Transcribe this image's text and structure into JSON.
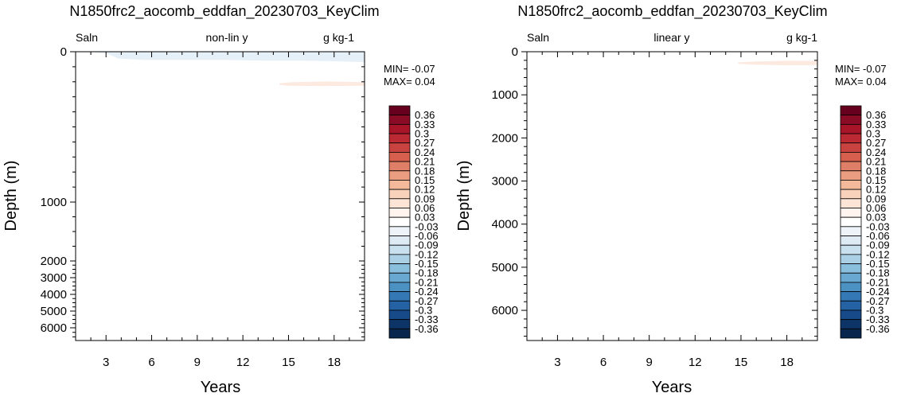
{
  "panels": [
    {
      "title": "N1850frc2_aocomb_eddfan_20230703_KeyClim",
      "left_label": "Saln",
      "center_label": "non-lin y",
      "right_label": "g kg-1",
      "xlabel": "Years",
      "ylabel": "Depth (m)",
      "min_text": "MIN= -0.07",
      "max_text": "MAX=  0.04"
    },
    {
      "title": "N1850frc2_aocomb_eddfan_20230703_KeyClim",
      "left_label": "Saln",
      "center_label": "linear y",
      "right_label": "g kg-1",
      "xlabel": "Years",
      "ylabel": "Depth (m)",
      "min_text": "MIN= -0.07",
      "max_text": "MAX=  0.04"
    }
  ],
  "chart_data": [
    {
      "type": "heatmap",
      "title": "N1850frc2_aocomb_eddfan_20230703_KeyClim",
      "variable": "Saln",
      "units": "g kg-1",
      "y_scale": "non-lin y",
      "xlabel": "Years",
      "ylabel": "Depth (m)",
      "xlim": [
        1,
        20
      ],
      "ylim": [
        0,
        6700
      ],
      "x_ticks": [
        3,
        6,
        9,
        12,
        15,
        18
      ],
      "y_ticks": [
        0,
        1000,
        2000,
        3000,
        4000,
        5000,
        6000
      ],
      "min": -0.07,
      "max": 0.04,
      "features": [
        {
          "value_bin": "-0.03 to 0",
          "color": "#e6f0f8",
          "years": [
            2,
            20
          ],
          "depth_m": [
            0,
            70
          ],
          "boundary": [
            [
              2.0,
              0
            ],
            [
              3.0,
              10
            ],
            [
              3.8,
              45
            ],
            [
              5.5,
              55
            ],
            [
              8.5,
              55
            ],
            [
              11.0,
              55
            ],
            [
              13.5,
              60
            ],
            [
              16.0,
              60
            ],
            [
              18.0,
              63
            ],
            [
              20.0,
              70
            ]
          ]
        },
        {
          "value_bin": "0 to 0.03",
          "color": "#fce9df",
          "years": [
            14.4,
            20
          ],
          "depth_m": [
            200,
            228
          ],
          "boundary": [
            [
              14.4,
              210
            ],
            [
              15.2,
              203
            ],
            [
              17.5,
              198
            ],
            [
              20.0,
              203
            ],
            [
              20.0,
              226
            ],
            [
              17.0,
              228
            ],
            [
              15.0,
              226
            ],
            [
              14.4,
              220
            ]
          ]
        }
      ]
    },
    {
      "type": "heatmap",
      "title": "N1850frc2_aocomb_eddfan_20230703_KeyClim",
      "variable": "Saln",
      "units": "g kg-1",
      "y_scale": "linear y",
      "xlabel": "Years",
      "ylabel": "Depth (m)",
      "xlim": [
        1,
        20
      ],
      "ylim": [
        0,
        6700
      ],
      "x_ticks": [
        3,
        6,
        9,
        12,
        15,
        18
      ],
      "y_ticks": [
        0,
        1000,
        2000,
        3000,
        4000,
        5000,
        6000
      ],
      "min": -0.07,
      "max": 0.04,
      "features": [
        {
          "value_bin": "0 to 0.03",
          "color": "#fce9df",
          "years": [
            14.8,
            20
          ],
          "depth_m": [
            210,
            320
          ],
          "boundary": [
            [
              14.8,
              250
            ],
            [
              16.0,
              225
            ],
            [
              18.0,
              210
            ],
            [
              20.0,
              215
            ],
            [
              20.0,
              310
            ],
            [
              18.0,
              315
            ],
            [
              16.0,
              300
            ],
            [
              14.8,
              280
            ]
          ]
        }
      ]
    }
  ],
  "colorbar": {
    "labels": [
      "0.36",
      "0.33",
      "0.3",
      "0.27",
      "0.24",
      "0.21",
      "0.18",
      "0.15",
      "0.12",
      "0.09",
      "0.06",
      "0.03",
      "-0.03",
      "-0.06",
      "-0.09",
      "-0.12",
      "-0.15",
      "-0.18",
      "-0.21",
      "-0.24",
      "-0.27",
      "-0.3",
      "-0.33",
      "-0.36"
    ],
    "colors": [
      "#67001f",
      "#8a0b25",
      "#a81529",
      "#bb2a33",
      "#c8433f",
      "#d6604d",
      "#e07f67",
      "#ea9d80",
      "#f4b99b",
      "#f9d2bb",
      "#fce4d6",
      "#fff4ee",
      "#ffffff",
      "#edf3f8",
      "#deebf4",
      "#c9e0ee",
      "#abd0e5",
      "#89bedc",
      "#69a8d0",
      "#4b91c2",
      "#3479b6",
      "#2462a3",
      "#164a88",
      "#0d3466",
      "#08254d"
    ]
  }
}
